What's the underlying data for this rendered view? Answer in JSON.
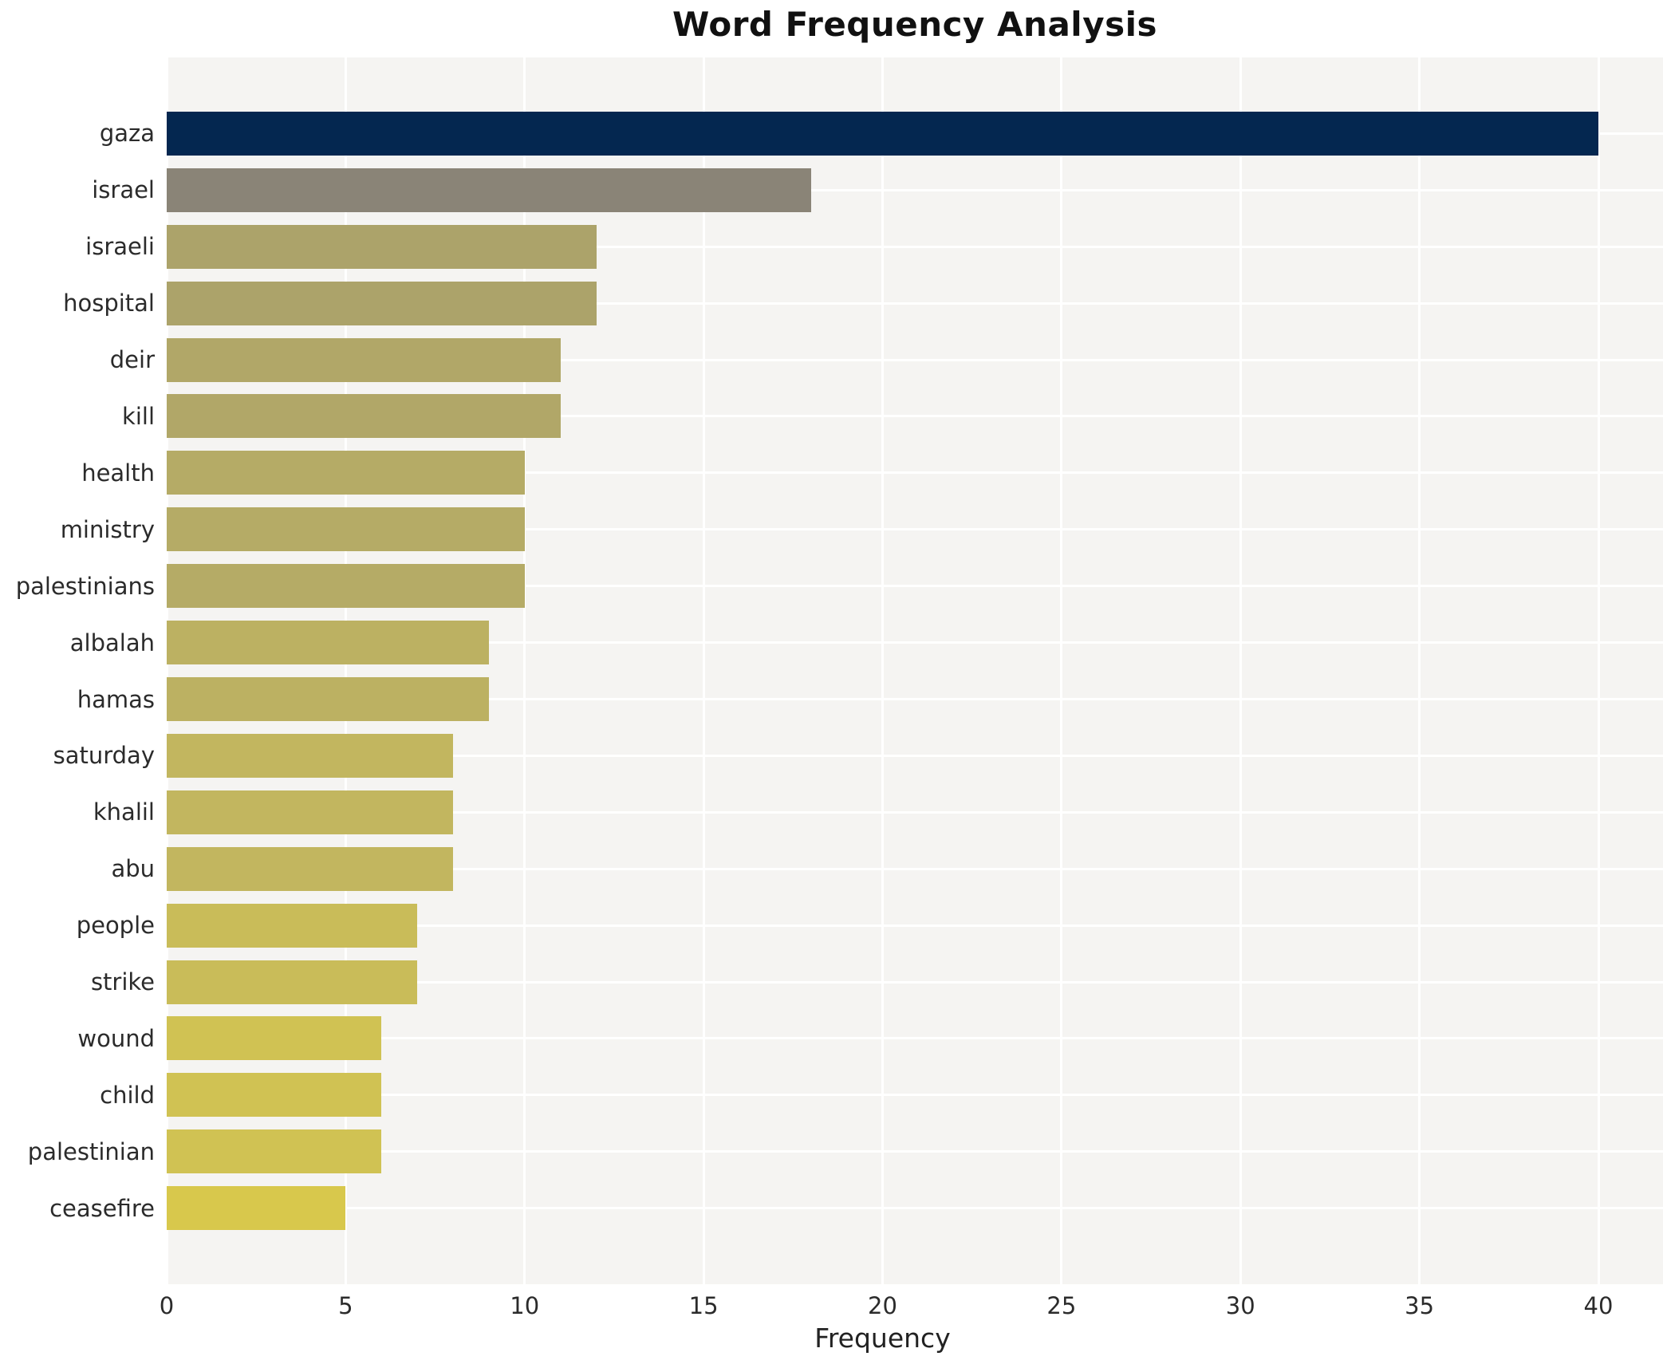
{
  "chart_data": {
    "type": "bar",
    "orientation": "horizontal",
    "title": "Word Frequency Analysis",
    "xlabel": "Frequency",
    "ylabel": "",
    "categories": [
      "gaza",
      "israel",
      "israeli",
      "hospital",
      "deir",
      "kill",
      "health",
      "ministry",
      "palestinians",
      "albalah",
      "hamas",
      "saturday",
      "khalil",
      "abu",
      "people",
      "strike",
      "wound",
      "child",
      "palestinian",
      "ceasefire"
    ],
    "values": [
      40,
      18,
      12,
      12,
      11,
      11,
      10,
      10,
      10,
      9,
      9,
      8,
      8,
      8,
      7,
      7,
      6,
      6,
      6,
      5
    ],
    "bar_colors": [
      "#042750",
      "#8a8477",
      "#aca36a",
      "#aca36a",
      "#b1a768",
      "#b1a768",
      "#b5ab66",
      "#b5ab66",
      "#b5ab66",
      "#bcb162",
      "#bcb162",
      "#c2b65f",
      "#c2b65f",
      "#c2b65f",
      "#c9bc59",
      "#c9bc59",
      "#d0c253",
      "#d0c253",
      "#d0c253",
      "#d8c84c"
    ],
    "x_ticks": [
      0,
      5,
      10,
      15,
      20,
      25,
      30,
      35,
      40
    ],
    "xlim": [
      0,
      42
    ],
    "grid": true,
    "gridline_color": "#ffffff",
    "plot_background": "#f5f4f2",
    "legend": false
  }
}
